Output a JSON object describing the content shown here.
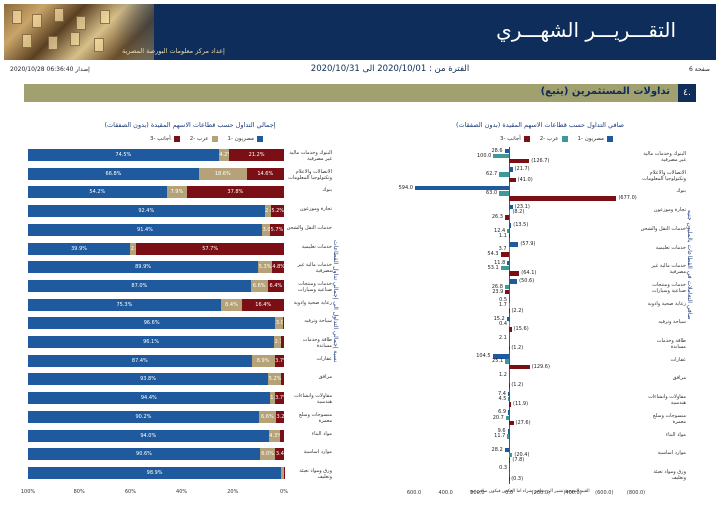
{
  "header": {
    "title": "التقـــريـــر الشهـــري",
    "subtitle": "إعداد مركز معلومات البورصة المصرية",
    "issue_date": "إصدار 06:36:40 2020/10/28",
    "period": "الفترة من : 2020/10/01 الى 2020/10/31",
    "page": "صفحة 6"
  },
  "section": {
    "number": "٤.",
    "title": "تداولات المستثمرين (يتبع)"
  },
  "colors": {
    "navy": "#0e2d5a",
    "blue": "#1f5a9e",
    "tan": "#b5a279",
    "maroon": "#7a1016",
    "olive": "#a1a06f",
    "teal": "#3d9a9a"
  },
  "chart_data": [
    {
      "type": "bar",
      "orientation": "horizontal",
      "stacked": true,
      "title": "إجمالي التداول حسب قطاعات الاسهم المقيدة (بدون الصفقات)",
      "ylabel": "نسبة إجمالي التداول الى إجمالي تداول القطاعات",
      "legend": [
        "مصريون -1",
        "عرب -2",
        "أجانب -3"
      ],
      "xticks": [
        "0%",
        "20%",
        "40%",
        "60%",
        "80%",
        "100%"
      ],
      "categories": [
        "البنوك وخدمات مالية غير مصرفية",
        "الاتصالات والاعلام وتكنولوجيا المعلومات",
        "بنوك",
        "تجارة وموزعون",
        "خدمات النقل والشحن",
        "خدمات تعليمية",
        "خدمات مالية غير مصرفية",
        "خدمات ومنتجات صناعية وسيارات",
        "رعاية صحية وادوية",
        "سياحة وترفيه",
        "طاقة وخدمات مساندة",
        "عقارات",
        "مرافق",
        "مقاولات وانشاءات هندسية",
        "منسوجات وسلع معمرة",
        "مواد البناء",
        "موارد اساسية",
        "ورق ومواد تعبئة وتغليف"
      ],
      "series": [
        {
          "name": "مصريون -1",
          "values": [
            74.5,
            66.8,
            54.2,
            92.4,
            91.4,
            39.9,
            89.9,
            87.0,
            75.3,
            96.6,
            96.1,
            87.4,
            93.8,
            94.4,
            90.2,
            94.0,
            90.6,
            98.9
          ]
        },
        {
          "name": "عرب -2",
          "values": [
            4.2,
            18.6,
            7.9,
            2.4,
            3.0,
            2.4,
            5.3,
            6.6,
            8.4,
            3.0,
            2.7,
            8.9,
            5.2,
            1.9,
            6.6,
            4.3,
            6.0,
            1.0
          ]
        },
        {
          "name": "أجانب -3",
          "values": [
            21.2,
            14.6,
            37.8,
            5.2,
            5.7,
            57.7,
            4.8,
            6.4,
            16.4,
            0.4,
            1.2,
            3.7,
            1.0,
            3.7,
            3.2,
            1.7,
            3.4,
            0.1
          ]
        }
      ],
      "labels": [
        [
          "74.5%",
          "4.2%",
          "21.2%"
        ],
        [
          "66.8%",
          "18.6%",
          "14.6%"
        ],
        [
          "54.2%",
          "7.9%",
          "37.8%"
        ],
        [
          "92.4%",
          "2.4%",
          "5.2%"
        ],
        [
          "91.4%",
          "3.0%",
          "5.7%"
        ],
        [
          "39.9%",
          "2.4%",
          "57.7%"
        ],
        [
          "89.9%",
          "5.3%",
          "4.8%"
        ],
        [
          "87.0%",
          "6.6%",
          "6.4%"
        ],
        [
          "75.3%",
          "8.4%",
          "16.4%"
        ],
        [
          "96.6%",
          "3.0%",
          ""
        ],
        [
          "96.1%",
          "2.7%",
          ""
        ],
        [
          "87.4%",
          "8.9%",
          "3.7%"
        ],
        [
          "93.8%",
          "5.2%",
          ""
        ],
        [
          "94.4%",
          "1.9%",
          "3.7%"
        ],
        [
          "90.2%",
          "6.6%",
          "3.2%"
        ],
        [
          "94.0%",
          "4.3%",
          ""
        ],
        [
          "90.6%",
          "6.0%",
          "3.4%"
        ],
        [
          "98.9%",
          "1",
          ""
        ]
      ],
      "xlim": [
        0,
        100
      ]
    },
    {
      "type": "bar",
      "orientation": "horizontal",
      "stacked": false,
      "title": "صافي التداول حسب قطاعات الاسهم المقيدة (بدون الصفقات)",
      "ylabel": "صافي التعاملات في القطاعات بالمليون جنيه",
      "footnote": "القيم الموجبة تشير الى صافي شراء اما العكس فيكون صافي بيع",
      "legend": [
        "مصريون -1",
        "عرب -2",
        "أجانب -3"
      ],
      "xticks": [
        "600.0",
        "400.0",
        "200.0",
        "0.0",
        "(200.0)",
        "(400.0)",
        "(600.0)",
        "(800.0)"
      ],
      "xlim": [
        -800,
        600
      ],
      "categories": [
        "البنوك وخدمات مالية غير مصرفية",
        "الاتصالات والاعلام وتكنولوجيا المعلومات",
        "بنوك",
        "تجارة وموزعون",
        "خدمات النقل والشحن",
        "خدمات تعليمية",
        "خدمات مالية غير مصرفية",
        "خدمات ومنتجات صناعية وسيارات",
        "رعاية صحية وادوية",
        "سياحة وترفيه",
        "طاقة وخدمات مساندة",
        "عقارات",
        "مرافق",
        "مقاولات وانشاءات هندسية",
        "منسوجات وسلع معمرة",
        "مواد البناء",
        "موارد اساسية",
        "ورق ومواد تعبئة وتغليف"
      ],
      "series": [
        {
          "name": "مصريون -1",
          "values": [
            28.6,
            -21.7,
            594.0,
            -23.1,
            -13.5,
            -57.9,
            11.8,
            -50.6,
            0.5,
            15.2,
            2.1,
            104.5,
            1.2,
            7.4,
            6.9,
            9.6,
            28.2,
            0.3
          ]
        },
        {
          "name": "عرب -2",
          "values": [
            100.0,
            62.7,
            63.0,
            -8.2,
            12.4,
            3.7,
            53.1,
            26.8,
            1.7,
            0.4,
            null,
            25.1,
            null,
            4.5,
            20.7,
            11.7,
            -20.4,
            null
          ]
        },
        {
          "name": "أجانب -3",
          "values": [
            -126.7,
            -41.0,
            -677.0,
            26.3,
            1.1,
            54.3,
            -64.1,
            23.9,
            -2.2,
            -15.6,
            -1.2,
            -129.6,
            -1.2,
            -11.9,
            -27.6,
            null,
            -7.8,
            -0.3
          ]
        }
      ],
      "value_labels": [
        [
          "28.6",
          "100.0",
          "(126.7)"
        ],
        [
          "(21.7)",
          "62.7",
          "(41.0)"
        ],
        [
          "594.0",
          "63.0",
          "(677.0)"
        ],
        [
          "(23.1)",
          "(8.2)",
          "26.3"
        ],
        [
          "(13.5)",
          "12.4",
          "1.1"
        ],
        [
          "(57.9)",
          "3.7",
          "54.3"
        ],
        [
          "11.8",
          "53.1",
          "(64.1)"
        ],
        [
          "(50.6)",
          "26.8",
          "23.9"
        ],
        [
          "0.5",
          "1.7",
          "(2.2)"
        ],
        [
          "15.2",
          "0.4",
          "(15.6)"
        ],
        [
          "2.1",
          "",
          "(1.2)"
        ],
        [
          "104.5",
          "25.1",
          "(129.6)"
        ],
        [
          "1.2",
          "",
          "(1.2)"
        ],
        [
          "7.4",
          "4.5",
          "(11.9)"
        ],
        [
          "6.9",
          "20.7",
          "(27.6)"
        ],
        [
          "9.6",
          "11.7",
          ""
        ],
        [
          "28.2",
          "(20.4)",
          "(7.8)"
        ],
        [
          "0.3",
          "",
          "(0.3)"
        ]
      ]
    }
  ]
}
